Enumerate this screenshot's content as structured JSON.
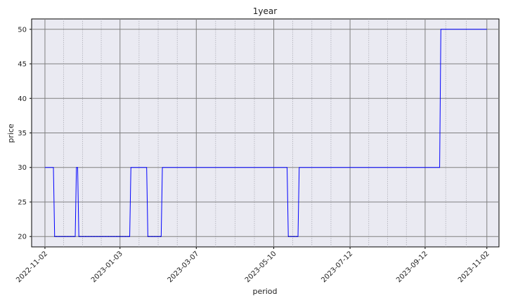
{
  "chart_data": {
    "type": "line",
    "title": "1year",
    "xlabel": "period",
    "ylabel": "price",
    "ylim": [
      18.5,
      51.5
    ],
    "xlim": [
      "2022-10-22",
      "2023-11-12"
    ],
    "yticks": [
      20,
      25,
      30,
      35,
      40,
      45,
      50
    ],
    "xticks": [
      "2022-11-02",
      "2023-01-03",
      "2023-03-07",
      "2023-05-10",
      "2023-07-12",
      "2023-09-12",
      "2023-11-02"
    ],
    "grid": true,
    "line_color": "#0000ff",
    "series": [
      {
        "points": [
          [
            "2022-11-02",
            30
          ],
          [
            "2022-11-09",
            30
          ],
          [
            "2022-11-10",
            20
          ],
          [
            "2022-11-27",
            20
          ],
          [
            "2022-11-28",
            30
          ],
          [
            "2022-11-29",
            30
          ],
          [
            "2022-11-30",
            20
          ],
          [
            "2023-01-11",
            20
          ],
          [
            "2023-01-12",
            30
          ],
          [
            "2023-01-25",
            30
          ],
          [
            "2023-01-26",
            20
          ],
          [
            "2023-02-06",
            20
          ],
          [
            "2023-02-07",
            30
          ],
          [
            "2023-05-21",
            30
          ],
          [
            "2023-05-22",
            20
          ],
          [
            "2023-05-30",
            20
          ],
          [
            "2023-05-31",
            30
          ],
          [
            "2023-09-24",
            30
          ],
          [
            "2023-09-25",
            50
          ],
          [
            "2023-11-02",
            50
          ]
        ]
      }
    ]
  }
}
